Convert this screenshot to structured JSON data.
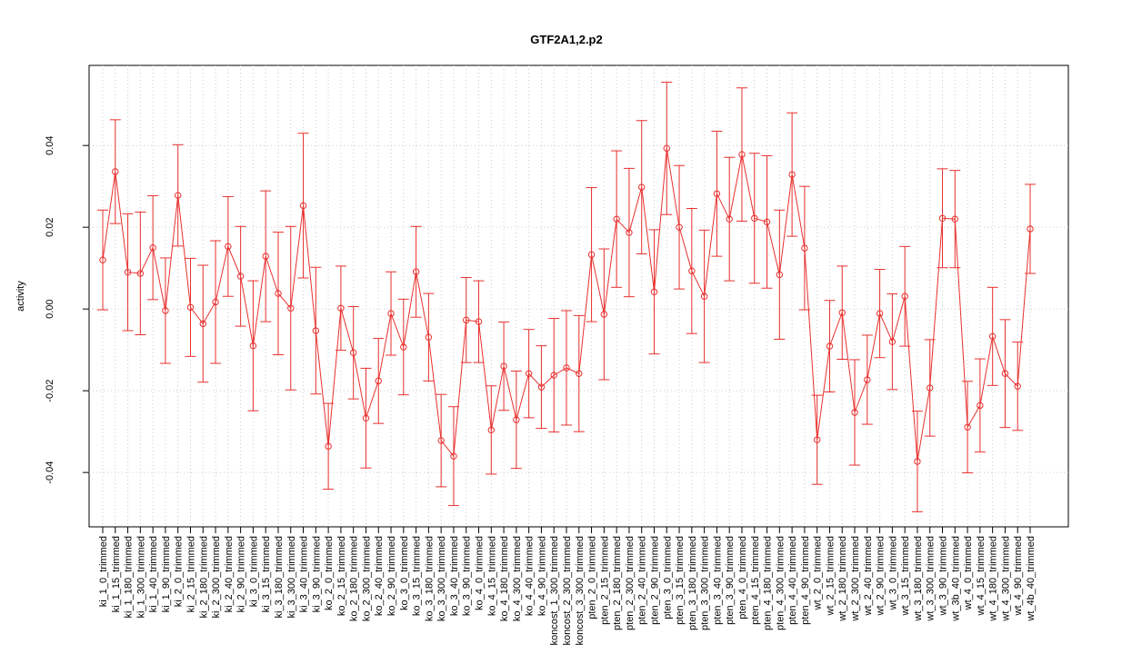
{
  "chart_data": {
    "type": "line",
    "title": "GTF2A1,2.p2",
    "y_label": "activity",
    "color": "#e8302e",
    "grid": true,
    "ylim": [
      -0.0533,
      0.0596
    ],
    "yticks": [
      -0.04,
      -0.02,
      {
        "value": 0,
        "label": "0.00"
      },
      0.02,
      0.04
    ],
    "categories": [
      "ki_1_0_trimmed",
      "ki_1_15_trimmed",
      "ki_1_180_trimmed",
      "ki_1_300_trimmed",
      "ki_1_40_trimmed",
      "ki_1_90_trimmed",
      "ki_2_0_trimmed",
      "ki_2_15_trimmed",
      "ki_2_180_trimmed",
      "ki_2_300_trimmed",
      "ki_2_40_trimmed",
      "ki_2_90_trimmed",
      "ki_3_0_trimmed",
      "ki_3_15_trimmed",
      "ki_3_180_trimmed",
      "ki_3_300_trimmed",
      "ki_3_40_trimmed",
      "ki_3_90_trimmed",
      "ko_2_0_trimmed",
      "ko_2_15_trimmed",
      "ko_2_180_trimmed",
      "ko_2_300_trimmed",
      "ko_2_40_trimmed",
      "ko_2_90_trimmed",
      "ko_3_0_trimmed",
      "ko_3_15_trimmed",
      "ko_3_180_trimmed",
      "ko_3_300_trimmed",
      "ko_3_40_trimmed",
      "ko_3_90_trimmed",
      "ko_4_0_trimmed",
      "ko_4_15_trimmed",
      "ko_4_180_trimmed",
      "ko_4_300_trimmed",
      "ko_4_40_trimmed",
      "ko_4_90_trimmed",
      "koncost_1_300_trimmed",
      "koncost_2_300_trimmed",
      "koncost_3_300_trimmed",
      "pten_2_0_trimmed",
      "pten_2_15_trimmed",
      "pten_2_180_trimmed",
      "pten_2_300_trimmed",
      "pten_2_40_trimmed",
      "pten_2_90_trimmed",
      "pten_3_0_trimmed",
      "pten_3_15_trimmed",
      "pten_3_180_trimmed",
      "pten_3_300_trimmed",
      "pten_3_40_trimmed",
      "pten_3_90_trimmed",
      "pten_4_0_trimmed",
      "pten_4_15_trimmed",
      "pten_4_180_trimmed",
      "pten_4_300_trimmed",
      "pten_4_40_trimmed",
      "pten_4_90_trimmed",
      "wt_2_0_trimmed",
      "wt_2_15_trimmed",
      "wt_2_180_trimmed",
      "wt_2_300_trimmed",
      "wt_2_40_trimmed",
      "wt_2_90_trimmed",
      "wt_3_0_trimmed",
      "wt_3_15_trimmed",
      "wt_3_180_trimmed",
      "wt_3_300_trimmed",
      "wt_3_90_trimmed",
      "wt_3b_40_trimmed",
      "wt_4_0_trimmed",
      "wt_4_15_trimmed",
      "wt_4_180_trimmed",
      "wt_4_300_trimmed",
      "wt_4_90_trimmed",
      "wt_4b_40_trimmed"
    ],
    "values": [
      0.012,
      0.0336,
      0.009,
      0.0087,
      0.015,
      -0.0004,
      0.0278,
      0.0004,
      -0.0036,
      0.0017,
      0.0153,
      0.008,
      -0.009,
      0.0129,
      0.0038,
      0.0002,
      0.0253,
      -0.0053,
      -0.0336,
      0.0002,
      -0.0107,
      -0.0267,
      -0.0176,
      -0.0011,
      -0.0093,
      0.0091,
      -0.0069,
      -0.0322,
      -0.036,
      -0.0027,
      -0.0031,
      -0.0296,
      -0.014,
      -0.0271,
      -0.0158,
      -0.0191,
      -0.0162,
      -0.0144,
      -0.0158,
      0.0133,
      -0.0013,
      0.022,
      0.0187,
      0.0298,
      0.0042,
      0.0393,
      0.02,
      0.0093,
      0.0031,
      0.0282,
      0.022,
      0.0378,
      0.0222,
      0.0213,
      0.0084,
      0.0329,
      0.0149,
      -0.032,
      -0.0091,
      -0.0009,
      -0.0253,
      -0.0173,
      -0.0011,
      -0.008,
      0.0031,
      -0.0373,
      -0.0193,
      0.0222,
      0.022,
      -0.0289,
      -0.0236,
      -0.0067,
      -0.0158,
      -0.0189,
      0.0196
    ],
    "errors": [
      0.0122,
      0.0127,
      0.0143,
      0.015,
      0.0127,
      0.0129,
      0.0124,
      0.012,
      0.0143,
      0.015,
      0.0122,
      0.0122,
      0.0159,
      0.016,
      0.015,
      0.02,
      0.0177,
      0.0155,
      0.0105,
      0.0103,
      0.0113,
      0.0122,
      0.0104,
      0.0102,
      0.0117,
      0.0111,
      0.0107,
      0.0113,
      0.0121,
      0.0104,
      0.01,
      0.0108,
      0.0108,
      0.0119,
      0.0108,
      0.0101,
      0.0139,
      0.014,
      0.0142,
      0.0164,
      0.016,
      0.0167,
      0.0157,
      0.0163,
      0.0152,
      0.0162,
      0.0151,
      0.0153,
      0.0162,
      0.0153,
      0.0151,
      0.0163,
      0.0159,
      0.0162,
      0.0158,
      0.0151,
      0.0151,
      0.0109,
      0.0112,
      0.0114,
      0.0129,
      0.0109,
      0.0108,
      0.0117,
      0.0122,
      0.0123,
      0.0118,
      0.0121,
      0.0119,
      0.0112,
      0.0114,
      0.012,
      0.0132,
      0.0108,
      0.0109
    ]
  }
}
